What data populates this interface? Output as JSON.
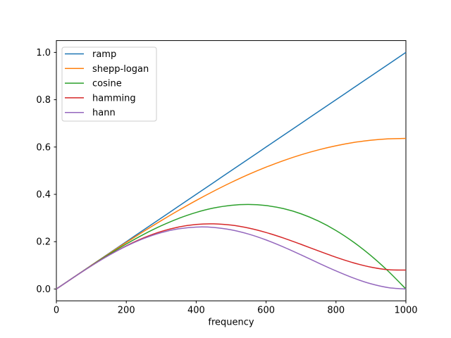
{
  "figure": {
    "background": "#ffffff",
    "spine_color": "#000000",
    "text_color": "#000000"
  },
  "chart_data": {
    "type": "line",
    "title": "",
    "xlabel": "frequency",
    "ylabel": "",
    "xlim": [
      0,
      1000
    ],
    "ylim": [
      -0.05,
      1.05
    ],
    "grid": false,
    "x_tick_values": [
      0,
      200,
      400,
      600,
      800,
      1000
    ],
    "x_tick_labels": [
      "0",
      "200",
      "400",
      "600",
      "800",
      "1000"
    ],
    "y_tick_values": [
      0.0,
      0.2,
      0.4,
      0.6,
      0.8,
      1.0
    ],
    "y_tick_labels": [
      "0.0",
      "0.2",
      "0.4",
      "0.6",
      "0.8",
      "1.0"
    ],
    "legend": {
      "position": "upper-left",
      "face_color": "#ffffff",
      "edge_color": "#cccccc",
      "entries": [
        "ramp",
        "shepp-logan",
        "cosine",
        "hamming",
        "hann"
      ]
    },
    "x": [
      0,
      50,
      100,
      150,
      200,
      250,
      300,
      350,
      400,
      450,
      500,
      550,
      600,
      650,
      700,
      750,
      800,
      850,
      900,
      950,
      1000
    ],
    "series": [
      {
        "name": "ramp",
        "color": "#1f77b4",
        "values": [
          0.0,
          0.05,
          0.1,
          0.15,
          0.2,
          0.25,
          0.3,
          0.35,
          0.4,
          0.45,
          0.5,
          0.55,
          0.6,
          0.65,
          0.7,
          0.75,
          0.8,
          0.85,
          0.9,
          0.95,
          1.0
        ]
      },
      {
        "name": "shepp-logan",
        "color": "#ff7f0e",
        "values": [
          0.0,
          0.0499,
          0.0996,
          0.1486,
          0.1967,
          0.2436,
          0.289,
          0.3326,
          0.3742,
          0.4134,
          0.4502,
          0.4841,
          0.515,
          0.5428,
          0.5672,
          0.5881,
          0.6054,
          0.619,
          0.6288,
          0.6346,
          0.6366
        ]
      },
      {
        "name": "cosine",
        "color": "#2ca02c",
        "values": [
          0.0,
          0.0498,
          0.0988,
          0.1459,
          0.1902,
          0.231,
          0.2673,
          0.2984,
          0.3236,
          0.3422,
          0.3536,
          0.3572,
          0.3527,
          0.3396,
          0.3178,
          0.287,
          0.2472,
          0.1984,
          0.1408,
          0.0745,
          0.0
        ]
      },
      {
        "name": "hamming",
        "color": "#d62728",
        "values": [
          0.0,
          0.0497,
          0.0977,
          0.1425,
          0.1824,
          0.2163,
          0.2431,
          0.2621,
          0.2729,
          0.2754,
          0.27,
          0.2574,
          0.2387,
          0.2153,
          0.1887,
          0.161,
          0.1343,
          0.1106,
          0.0923,
          0.0814,
          0.08
        ]
      },
      {
        "name": "hann",
        "color": "#9467bd",
        "values": [
          0.0,
          0.0497,
          0.0976,
          0.1418,
          0.1809,
          0.2134,
          0.2382,
          0.2544,
          0.2618,
          0.2602,
          0.25,
          0.232,
          0.2073,
          0.1775,
          0.1443,
          0.1098,
          0.0764,
          0.0463,
          0.022,
          0.0058,
          0.0
        ]
      }
    ]
  }
}
